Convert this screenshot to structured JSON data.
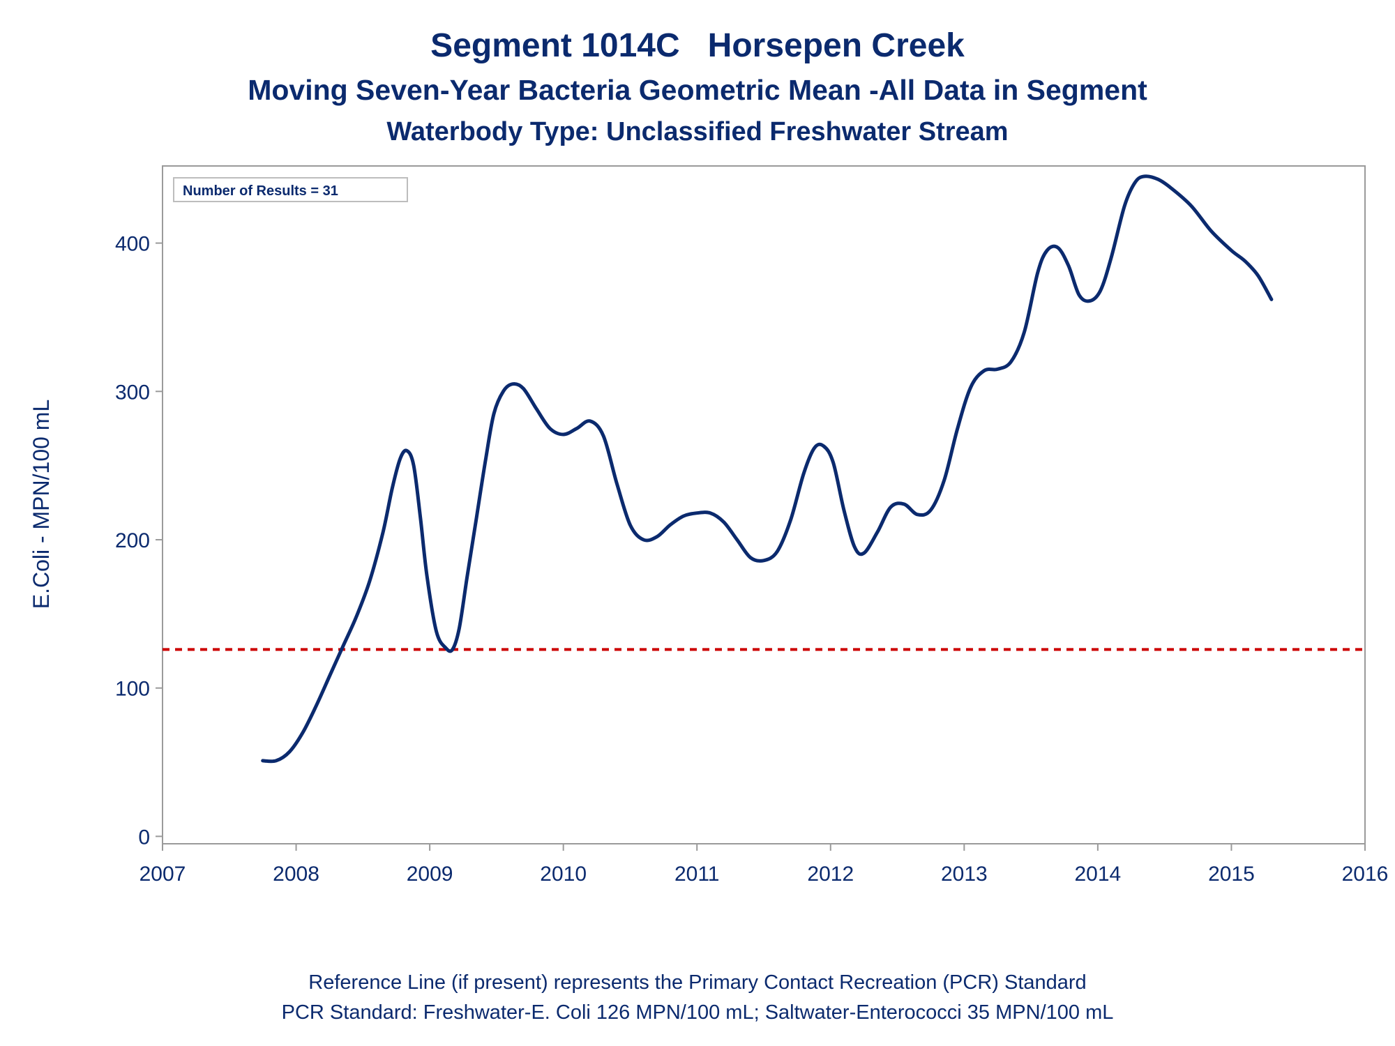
{
  "chart_data": {
    "type": "line",
    "title": "Segment 1014C   Horsepen Creek",
    "subtitle": "Moving Seven-Year Bacteria Geometric Mean -All Data in Segment",
    "subtitle2": "Waterbody Type: Unclassified Freshwater Stream",
    "ylabel": "E.Coli - MPN/100 mL",
    "xlabel": "",
    "xlim": [
      2007,
      2016
    ],
    "ylim": [
      -5,
      452
    ],
    "x_ticks": [
      2007,
      2008,
      2009,
      2010,
      2011,
      2012,
      2013,
      2014,
      2015,
      2016
    ],
    "y_ticks": [
      0,
      100,
      200,
      300,
      400
    ],
    "grid": false,
    "legend": "none",
    "inset_label": "Number of Results = 31",
    "series": [
      {
        "color": "#0b2a6e",
        "points": [
          [
            2007.75,
            51
          ],
          [
            2007.85,
            51
          ],
          [
            2007.95,
            57
          ],
          [
            2008.05,
            70
          ],
          [
            2008.15,
            88
          ],
          [
            2008.25,
            108
          ],
          [
            2008.35,
            128
          ],
          [
            2008.45,
            148
          ],
          [
            2008.55,
            172
          ],
          [
            2008.65,
            205
          ],
          [
            2008.72,
            235
          ],
          [
            2008.78,
            255
          ],
          [
            2008.83,
            260
          ],
          [
            2008.88,
            250
          ],
          [
            2008.93,
            215
          ],
          [
            2008.98,
            175
          ],
          [
            2009.05,
            138
          ],
          [
            2009.12,
            127
          ],
          [
            2009.17,
            126
          ],
          [
            2009.22,
            140
          ],
          [
            2009.28,
            175
          ],
          [
            2009.35,
            215
          ],
          [
            2009.42,
            255
          ],
          [
            2009.48,
            285
          ],
          [
            2009.55,
            300
          ],
          [
            2009.62,
            305
          ],
          [
            2009.7,
            302
          ],
          [
            2009.8,
            288
          ],
          [
            2009.9,
            275
          ],
          [
            2010.0,
            271
          ],
          [
            2010.1,
            275
          ],
          [
            2010.2,
            280
          ],
          [
            2010.3,
            270
          ],
          [
            2010.4,
            238
          ],
          [
            2010.5,
            210
          ],
          [
            2010.6,
            200
          ],
          [
            2010.7,
            202
          ],
          [
            2010.8,
            210
          ],
          [
            2010.9,
            216
          ],
          [
            2011.0,
            218
          ],
          [
            2011.1,
            218
          ],
          [
            2011.2,
            212
          ],
          [
            2011.3,
            200
          ],
          [
            2011.4,
            188
          ],
          [
            2011.5,
            186
          ],
          [
            2011.6,
            192
          ],
          [
            2011.7,
            213
          ],
          [
            2011.8,
            245
          ],
          [
            2011.88,
            262
          ],
          [
            2011.95,
            263
          ],
          [
            2012.02,
            252
          ],
          [
            2012.1,
            220
          ],
          [
            2012.18,
            195
          ],
          [
            2012.25,
            191
          ],
          [
            2012.35,
            205
          ],
          [
            2012.45,
            222
          ],
          [
            2012.55,
            224
          ],
          [
            2012.65,
            217
          ],
          [
            2012.75,
            220
          ],
          [
            2012.85,
            240
          ],
          [
            2012.95,
            275
          ],
          [
            2013.05,
            303
          ],
          [
            2013.15,
            314
          ],
          [
            2013.25,
            315
          ],
          [
            2013.35,
            320
          ],
          [
            2013.45,
            340
          ],
          [
            2013.55,
            380
          ],
          [
            2013.62,
            395
          ],
          [
            2013.7,
            397
          ],
          [
            2013.78,
            385
          ],
          [
            2013.86,
            365
          ],
          [
            2013.94,
            361
          ],
          [
            2014.02,
            368
          ],
          [
            2014.1,
            390
          ],
          [
            2014.2,
            425
          ],
          [
            2014.28,
            441
          ],
          [
            2014.35,
            445
          ],
          [
            2014.45,
            443
          ],
          [
            2014.55,
            437
          ],
          [
            2014.7,
            425
          ],
          [
            2014.85,
            408
          ],
          [
            2015.0,
            395
          ],
          [
            2015.1,
            388
          ],
          [
            2015.2,
            378
          ],
          [
            2015.3,
            362
          ]
        ]
      }
    ],
    "reference_line": {
      "y": 126,
      "color": "#cc0000",
      "style": "dashed"
    }
  },
  "footer": {
    "line1": "Reference Line (if present) represents the Primary Contact Recreation (PCR) Standard",
    "line2": "PCR Standard: Freshwater-E. Coli 126 MPN/100 mL; Saltwater-Enterococci 35 MPN/100 mL"
  }
}
